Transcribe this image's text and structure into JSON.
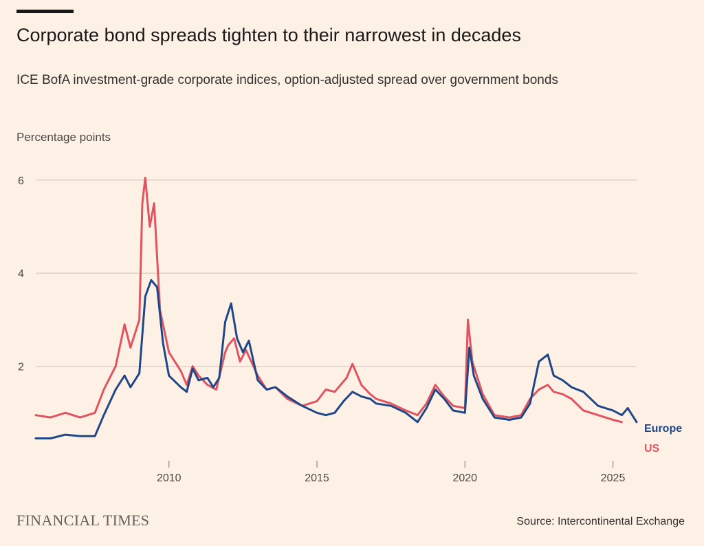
{
  "header": {
    "title": "Corporate bond spreads tighten to their narrowest in decades",
    "subtitle": "ICE BofA investment-grade corporate indices, option-adjusted spread over government bonds",
    "unit_label": "Percentage points"
  },
  "footer": {
    "brand": "FINANCIAL TIMES",
    "source": "Source: Intercontinental Exchange"
  },
  "colors": {
    "background": "#fdf1e5",
    "europe": "#1f4788",
    "us": "#e05360",
    "gridline": "#d5cbc2",
    "axis": "#8f8580"
  },
  "chart_data": {
    "type": "line",
    "title": "Corporate bond spreads tighten to their narrowest in decades",
    "subtitle": "ICE BofA investment-grade corporate indices, option-adjusted spread over government bonds",
    "ylabel": "Percentage points",
    "xlim": [
      2005.5,
      2025.8
    ],
    "ylim": [
      0,
      6.5
    ],
    "y_ticks": [
      2,
      4,
      6
    ],
    "x_ticks": [
      2010,
      2015,
      2020,
      2025
    ],
    "grid": true,
    "legend_placement": "right-end-labels",
    "series": [
      {
        "name": "Europe",
        "color": "#1f4788",
        "points": [
          [
            2005.5,
            0.45
          ],
          [
            2006.0,
            0.45
          ],
          [
            2006.5,
            0.53
          ],
          [
            2007.0,
            0.5
          ],
          [
            2007.5,
            0.5
          ],
          [
            2007.8,
            0.95
          ],
          [
            2008.2,
            1.5
          ],
          [
            2008.5,
            1.8
          ],
          [
            2008.7,
            1.55
          ],
          [
            2009.0,
            1.85
          ],
          [
            2009.2,
            3.5
          ],
          [
            2009.4,
            3.85
          ],
          [
            2009.6,
            3.7
          ],
          [
            2009.8,
            2.5
          ],
          [
            2010.0,
            1.8
          ],
          [
            2010.4,
            1.55
          ],
          [
            2010.6,
            1.45
          ],
          [
            2010.8,
            1.95
          ],
          [
            2011.0,
            1.7
          ],
          [
            2011.3,
            1.75
          ],
          [
            2011.5,
            1.55
          ],
          [
            2011.7,
            1.75
          ],
          [
            2011.9,
            2.95
          ],
          [
            2012.1,
            3.35
          ],
          [
            2012.3,
            2.6
          ],
          [
            2012.5,
            2.3
          ],
          [
            2012.7,
            2.55
          ],
          [
            2013.0,
            1.7
          ],
          [
            2013.3,
            1.5
          ],
          [
            2013.6,
            1.55
          ],
          [
            2014.0,
            1.35
          ],
          [
            2014.5,
            1.15
          ],
          [
            2015.0,
            1.0
          ],
          [
            2015.3,
            0.95
          ],
          [
            2015.6,
            1.0
          ],
          [
            2015.9,
            1.25
          ],
          [
            2016.2,
            1.45
          ],
          [
            2016.5,
            1.35
          ],
          [
            2016.8,
            1.3
          ],
          [
            2017.0,
            1.2
          ],
          [
            2017.5,
            1.15
          ],
          [
            2018.0,
            1.0
          ],
          [
            2018.4,
            0.8
          ],
          [
            2018.7,
            1.1
          ],
          [
            2019.0,
            1.5
          ],
          [
            2019.3,
            1.3
          ],
          [
            2019.6,
            1.05
          ],
          [
            2020.0,
            1.0
          ],
          [
            2020.15,
            2.4
          ],
          [
            2020.3,
            1.8
          ],
          [
            2020.6,
            1.3
          ],
          [
            2021.0,
            0.9
          ],
          [
            2021.5,
            0.85
          ],
          [
            2021.9,
            0.9
          ],
          [
            2022.2,
            1.2
          ],
          [
            2022.5,
            2.1
          ],
          [
            2022.8,
            2.25
          ],
          [
            2023.0,
            1.8
          ],
          [
            2023.3,
            1.7
          ],
          [
            2023.6,
            1.55
          ],
          [
            2024.0,
            1.45
          ],
          [
            2024.5,
            1.15
          ],
          [
            2025.0,
            1.05
          ],
          [
            2025.3,
            0.95
          ],
          [
            2025.5,
            1.1
          ],
          [
            2025.8,
            0.8
          ]
        ]
      },
      {
        "name": "US",
        "color": "#e05360",
        "points": [
          [
            2005.5,
            0.95
          ],
          [
            2006.0,
            0.9
          ],
          [
            2006.5,
            1.0
          ],
          [
            2007.0,
            0.9
          ],
          [
            2007.5,
            1.0
          ],
          [
            2007.8,
            1.5
          ],
          [
            2008.2,
            2.0
          ],
          [
            2008.5,
            2.9
          ],
          [
            2008.7,
            2.4
          ],
          [
            2009.0,
            3.0
          ],
          [
            2009.1,
            5.5
          ],
          [
            2009.2,
            6.05
          ],
          [
            2009.35,
            5.0
          ],
          [
            2009.5,
            5.5
          ],
          [
            2009.7,
            3.2
          ],
          [
            2010.0,
            2.3
          ],
          [
            2010.4,
            1.9
          ],
          [
            2010.6,
            1.6
          ],
          [
            2010.8,
            2.0
          ],
          [
            2011.0,
            1.8
          ],
          [
            2011.3,
            1.6
          ],
          [
            2011.6,
            1.5
          ],
          [
            2011.9,
            2.3
          ],
          [
            2012.0,
            2.45
          ],
          [
            2012.2,
            2.6
          ],
          [
            2012.4,
            2.1
          ],
          [
            2012.6,
            2.35
          ],
          [
            2013.0,
            1.8
          ],
          [
            2013.3,
            1.5
          ],
          [
            2013.6,
            1.55
          ],
          [
            2014.0,
            1.3
          ],
          [
            2014.5,
            1.15
          ],
          [
            2015.0,
            1.25
          ],
          [
            2015.3,
            1.5
          ],
          [
            2015.6,
            1.45
          ],
          [
            2016.0,
            1.75
          ],
          [
            2016.2,
            2.05
          ],
          [
            2016.5,
            1.6
          ],
          [
            2016.8,
            1.4
          ],
          [
            2017.0,
            1.3
          ],
          [
            2017.5,
            1.2
          ],
          [
            2018.0,
            1.05
          ],
          [
            2018.4,
            0.95
          ],
          [
            2018.7,
            1.2
          ],
          [
            2019.0,
            1.6
          ],
          [
            2019.3,
            1.35
          ],
          [
            2019.6,
            1.15
          ],
          [
            2020.0,
            1.1
          ],
          [
            2020.1,
            3.0
          ],
          [
            2020.25,
            2.1
          ],
          [
            2020.6,
            1.4
          ],
          [
            2021.0,
            0.95
          ],
          [
            2021.5,
            0.9
          ],
          [
            2021.9,
            0.95
          ],
          [
            2022.2,
            1.3
          ],
          [
            2022.5,
            1.5
          ],
          [
            2022.8,
            1.6
          ],
          [
            2023.0,
            1.45
          ],
          [
            2023.3,
            1.4
          ],
          [
            2023.6,
            1.3
          ],
          [
            2024.0,
            1.05
          ],
          [
            2024.5,
            0.95
          ],
          [
            2025.0,
            0.85
          ],
          [
            2025.3,
            0.8
          ]
        ]
      }
    ]
  }
}
